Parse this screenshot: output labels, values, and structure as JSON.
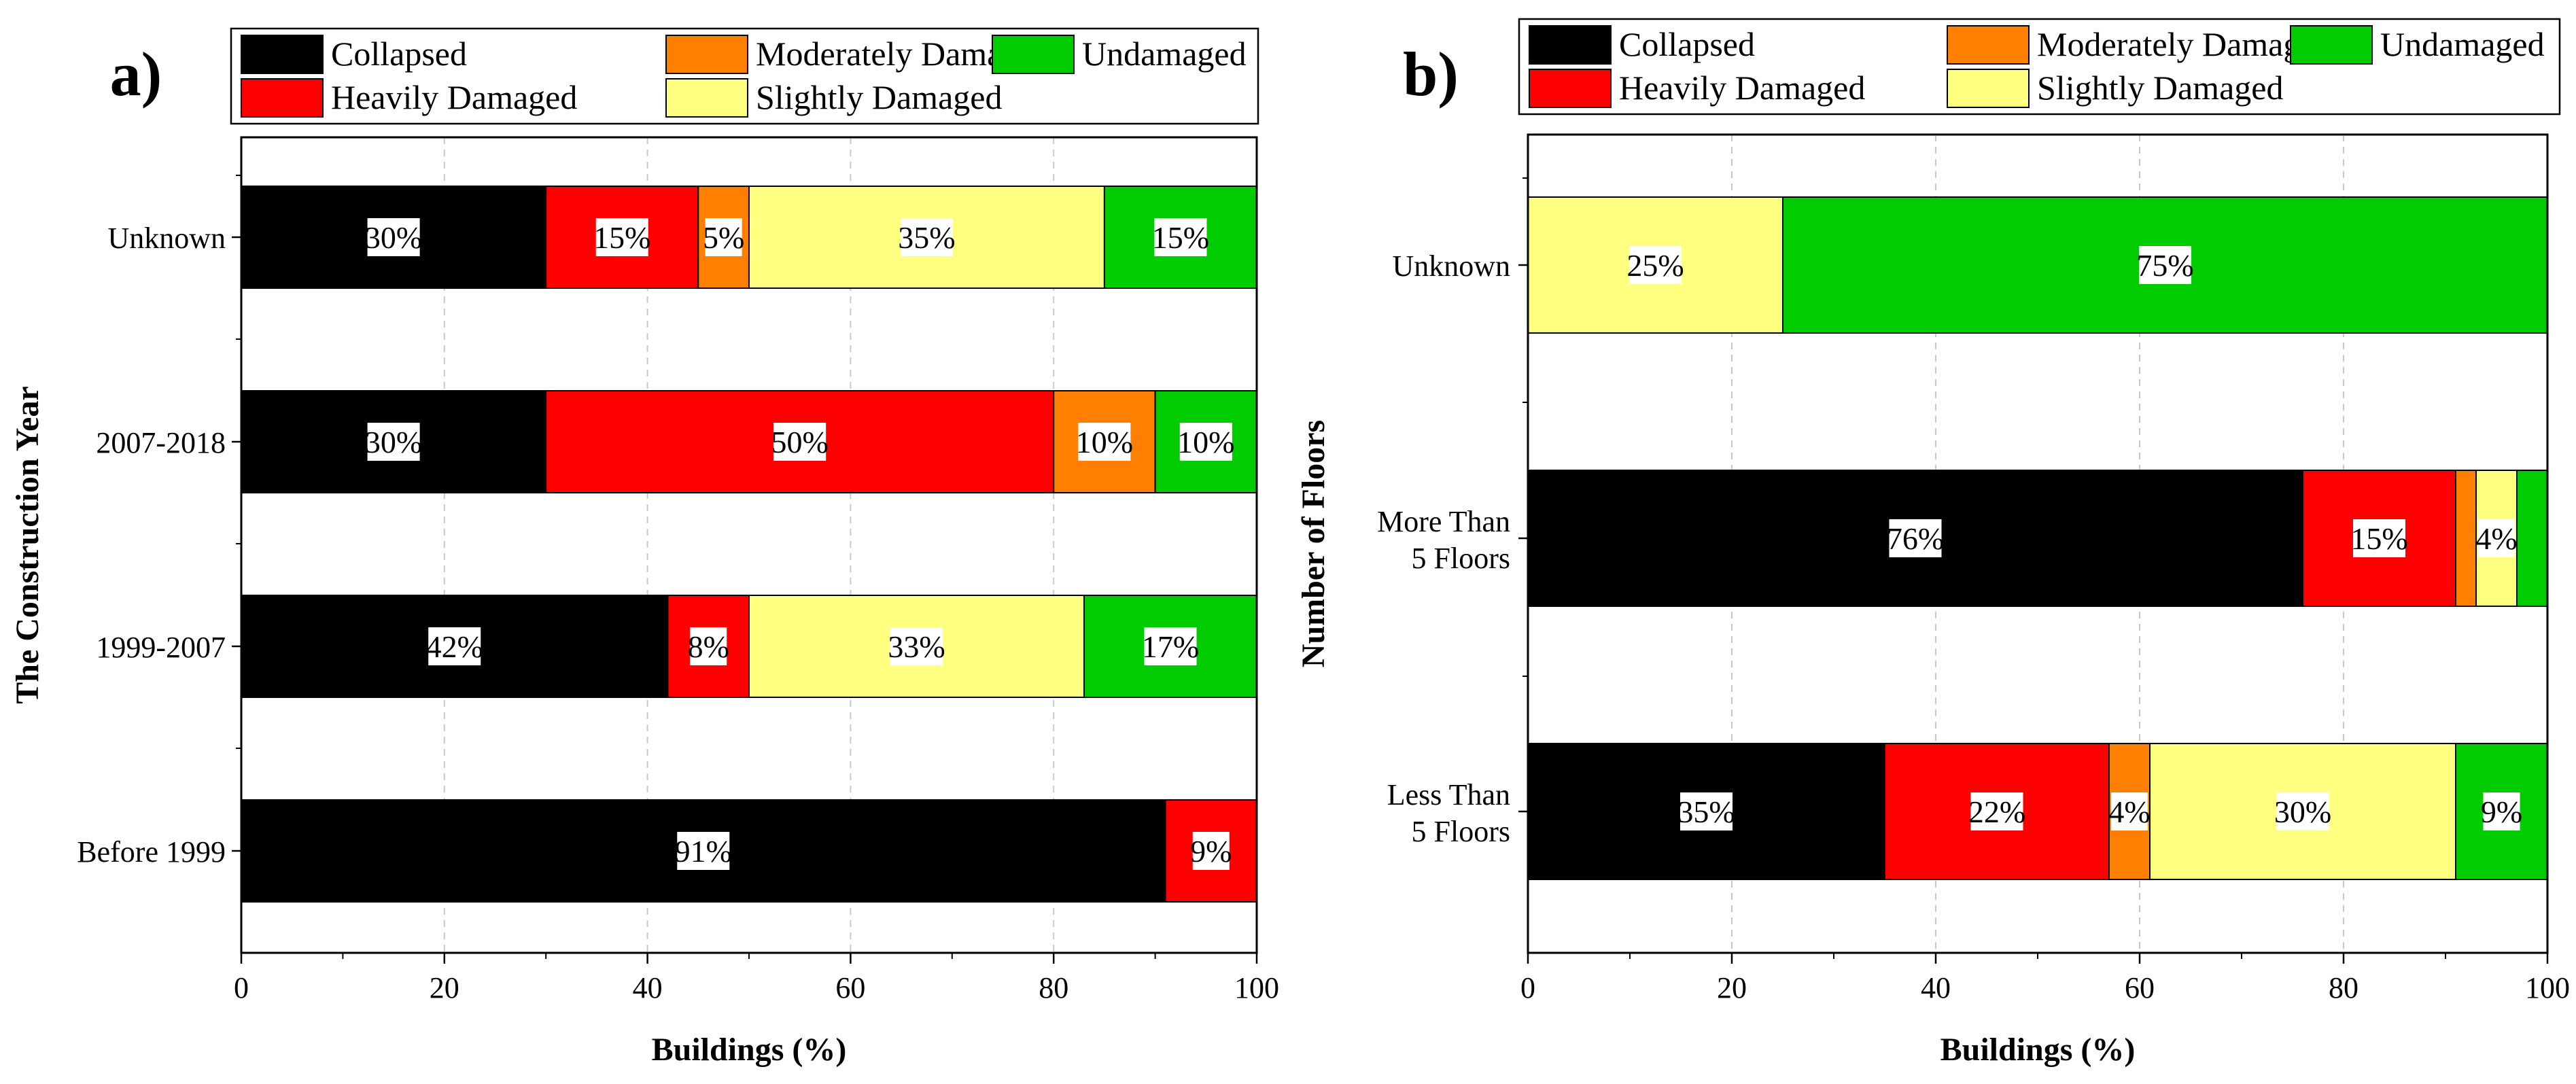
{
  "colors": {
    "Collapsed": "#000000",
    "Heavily Damaged": "#ff0000",
    "Moderately Damaged": "#ff8000",
    "Slightly Damaged": "#ffff80",
    "Undamaged": "#00cc00"
  },
  "chart_data": [
    {
      "type": "bar",
      "orientation": "horizontal",
      "stacked": true,
      "panel_label": "a)",
      "xlabel": "Buildings (%)",
      "ylabel": "The Construction Year",
      "xlim": [
        0,
        100
      ],
      "x_ticks": [
        "0",
        "20",
        "40",
        "60",
        "80",
        "100"
      ],
      "grid": "vertical dashed",
      "legend_position": "top",
      "legend": [
        "Collapsed",
        "Heavily Damaged",
        "Moderately Damaged",
        "Slightly Damaged",
        "Undamaged"
      ],
      "categories": [
        "Before 1999",
        "1999-2007",
        "2007-2018",
        "Unknown"
      ],
      "series": [
        {
          "name": "Collapsed",
          "values": [
            91,
            42,
            30,
            30
          ],
          "labels": [
            "91%",
            "42%",
            "30%",
            "30%"
          ]
        },
        {
          "name": "Heavily Damaged",
          "values": [
            9,
            8,
            50,
            15
          ],
          "labels": [
            "9%",
            "8%",
            "50%",
            "15%"
          ]
        },
        {
          "name": "Moderately Damaged",
          "values": [
            0,
            0,
            10,
            5
          ],
          "labels": [
            "",
            "",
            "10%",
            "5%"
          ]
        },
        {
          "name": "Slightly Damaged",
          "values": [
            0,
            33,
            0,
            35
          ],
          "labels": [
            "",
            "33%",
            "",
            "35%"
          ]
        },
        {
          "name": "Undamaged",
          "values": [
            0,
            17,
            10,
            15
          ],
          "labels": [
            "",
            "17%",
            "10%",
            "15%"
          ]
        }
      ]
    },
    {
      "type": "bar",
      "orientation": "horizontal",
      "stacked": true,
      "panel_label": "b)",
      "xlabel": "Buildings (%)",
      "ylabel": "Number of Floors",
      "xlim": [
        0,
        100
      ],
      "x_ticks": [
        "0",
        "20",
        "40",
        "60",
        "80",
        "100"
      ],
      "grid": "vertical dashed",
      "legend_position": "top",
      "legend": [
        "Collapsed",
        "Heavily Damaged",
        "Moderately Damaged",
        "Slightly Damaged",
        "Undamaged"
      ],
      "categories": [
        "Less Than\n5 Floors",
        "More Than\n5 Floors",
        "Unknown"
      ],
      "series": [
        {
          "name": "Collapsed",
          "values": [
            35,
            76,
            0
          ],
          "labels": [
            "35%",
            "76%",
            ""
          ]
        },
        {
          "name": "Heavily Damaged",
          "values": [
            22,
            15,
            0
          ],
          "labels": [
            "22%",
            "15%",
            ""
          ]
        },
        {
          "name": "Moderately Damaged",
          "values": [
            4,
            2,
            0
          ],
          "labels": [
            "4%",
            "",
            ""
          ]
        },
        {
          "name": "Slightly Damaged",
          "values": [
            30,
            4,
            25
          ],
          "labels": [
            "30%",
            "4%",
            "25%"
          ]
        },
        {
          "name": "Undamaged",
          "values": [
            9,
            3,
            75
          ],
          "labels": [
            "9%",
            "",
            "75%"
          ]
        }
      ]
    }
  ]
}
